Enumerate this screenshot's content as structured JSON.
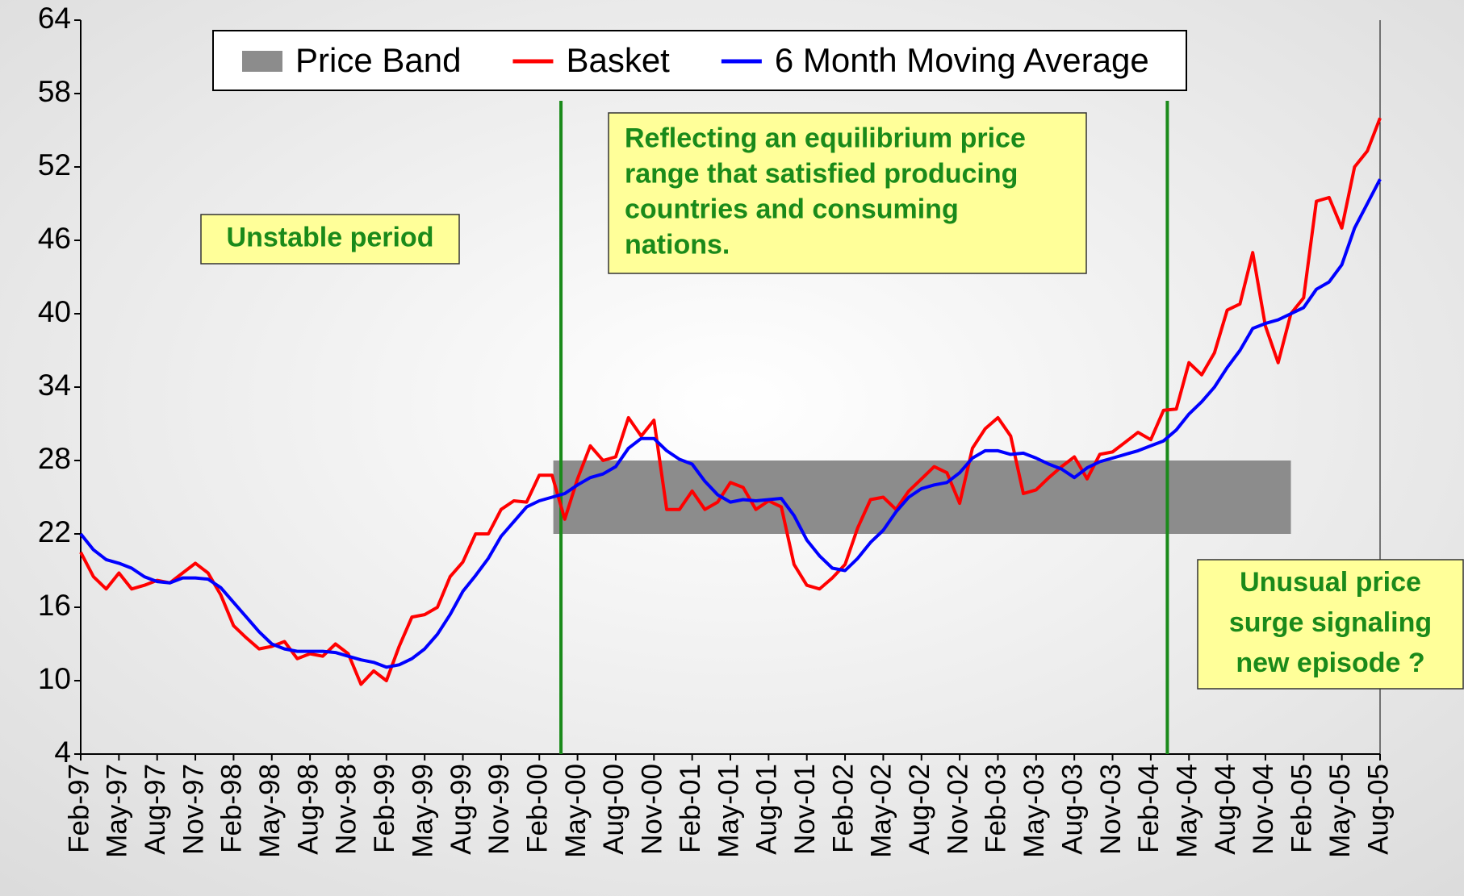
{
  "chart_data": {
    "type": "line",
    "categories": [
      "Feb-97",
      null,
      null,
      "May-97",
      null,
      null,
      "Aug-97",
      null,
      null,
      "Nov-97",
      null,
      null,
      "Feb-98",
      null,
      null,
      "May-98",
      null,
      null,
      "Aug-98",
      null,
      null,
      "Nov-98",
      null,
      null,
      "Feb-99",
      null,
      null,
      "May-99",
      null,
      null,
      "Aug-99",
      null,
      null,
      "Nov-99",
      null,
      null,
      "Feb-00",
      null,
      null,
      "May-00",
      null,
      null,
      "Aug-00",
      null,
      null,
      "Nov-00",
      null,
      null,
      "Feb-01",
      null,
      null,
      "May-01",
      null,
      null,
      "Aug-01",
      null,
      null,
      "Nov-01",
      null,
      null,
      "Feb-02",
      null,
      null,
      "May-02",
      null,
      null,
      "Aug-02",
      null,
      null,
      "Nov-02",
      null,
      null,
      "Feb-03",
      null,
      null,
      "May-03",
      null,
      null,
      "Aug-03",
      null,
      null,
      "Nov-03",
      null,
      null,
      "Feb-04",
      null,
      null,
      "May-04",
      null,
      null,
      "Aug-04",
      null,
      null,
      "Nov-04",
      null,
      null,
      "Feb-05",
      null,
      null,
      "May-05",
      null,
      null,
      "Aug-05"
    ],
    "series": [
      {
        "name": "Price Band",
        "color": "#8c8c8c",
        "kind": "band",
        "range": [
          22,
          28
        ],
        "from_index": 37.1,
        "to_index": 95
      },
      {
        "name": "Basket",
        "color": "#ff0000",
        "values": [
          20.5,
          18.5,
          17.5,
          18.8,
          17.5,
          17.8,
          18.2,
          18.0,
          18.8,
          19.6,
          18.8,
          17.0,
          14.5,
          13.5,
          12.6,
          12.8,
          13.2,
          11.8,
          12.2,
          12.0,
          13.0,
          12.2,
          9.7,
          10.8,
          10.0,
          12.8,
          15.2,
          15.4,
          16.0,
          18.5,
          19.7,
          22.0,
          22.0,
          24.0,
          24.7,
          24.6,
          26.8,
          26.8,
          23.2,
          26.5,
          29.2,
          28.0,
          28.3,
          31.5,
          30.0,
          31.3,
          24.0,
          24.0,
          25.5,
          24.0,
          24.6,
          26.2,
          25.8,
          24.0,
          24.7,
          24.2,
          19.5,
          17.8,
          17.5,
          18.4,
          19.5,
          22.5,
          24.8,
          25.0,
          24.0,
          25.5,
          26.5,
          27.5,
          27.0,
          24.5,
          29.0,
          30.6,
          31.5,
          30.0,
          25.3,
          25.6,
          26.6,
          27.5,
          28.3,
          26.5,
          28.5,
          28.7,
          29.5,
          30.3,
          29.7,
          32.1,
          32.2,
          36.0,
          35.0,
          36.8,
          40.3,
          40.8,
          45.0,
          39.0,
          36.0,
          40.0,
          41.3,
          49.2,
          49.5,
          47.0,
          52.0,
          53.3,
          56.0
        ]
      },
      {
        "name": "6 Month Moving Average",
        "color": "#0000ff",
        "values": [
          22.0,
          20.7,
          19.9,
          19.6,
          19.2,
          18.5,
          18.1,
          18.0,
          18.4,
          18.4,
          18.3,
          17.6,
          16.4,
          15.2,
          14.0,
          13.0,
          12.6,
          12.4,
          12.4,
          12.4,
          12.3,
          12.0,
          11.7,
          11.5,
          11.1,
          11.3,
          11.8,
          12.6,
          13.8,
          15.4,
          17.3,
          18.6,
          20.0,
          21.8,
          23.0,
          24.2,
          24.7,
          25.0,
          25.3,
          26.0,
          26.6,
          26.9,
          27.5,
          29.0,
          29.8,
          29.8,
          28.8,
          28.1,
          27.7,
          26.3,
          25.2,
          24.6,
          24.8,
          24.7,
          24.8,
          24.9,
          23.5,
          21.5,
          20.2,
          19.2,
          19.0,
          20.0,
          21.3,
          22.3,
          23.8,
          25.0,
          25.7,
          26.0,
          26.2,
          27.0,
          28.2,
          28.8,
          28.8,
          28.5,
          28.6,
          28.2,
          27.7,
          27.3,
          26.6,
          27.4,
          27.9,
          28.2,
          28.5,
          28.8,
          29.2,
          29.6,
          30.5,
          31.8,
          32.8,
          34.0,
          35.6,
          37.0,
          38.8,
          39.2,
          39.5,
          40.0,
          40.5,
          42.0,
          42.6,
          44.0,
          47.0,
          49.0,
          51.0
        ]
      }
    ],
    "ylim": [
      4,
      64
    ],
    "yticks": [
      4,
      10,
      16,
      22,
      28,
      34,
      40,
      46,
      52,
      58,
      64
    ],
    "event_lines": {
      "color": "#1a8a1a",
      "at_index": [
        37.7,
        85.3
      ]
    },
    "annotations": [
      {
        "lines": [
          "Unstable period"
        ]
      },
      {
        "lines": [
          "Reflecting an equilibrium price",
          "range that satisfied producing",
          "countries and consuming",
          "nations."
        ]
      },
      {
        "lines": [
          "Unusual price",
          "surge signaling",
          "new episode ?"
        ]
      }
    ],
    "legend": "top"
  }
}
